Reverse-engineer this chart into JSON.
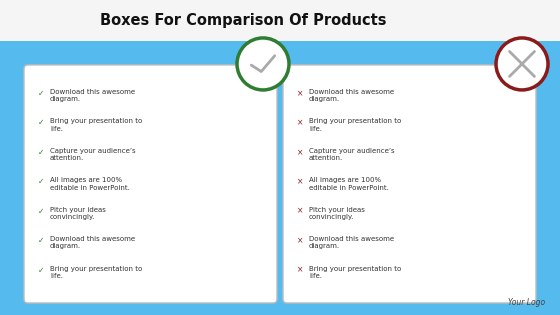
{
  "title": "Boxes For Comparison Of Products",
  "background_color": "#55bbee",
  "white_bg": "#f5f5f5",
  "box_fill": "#ffffff",
  "box_edge": "#cccccc",
  "title_fontsize": 10.5,
  "title_color": "#111111",
  "left_icon_color": "#2e7d32",
  "right_icon_color": "#8b1a1a",
  "bullet_color_left": "#2e7d32",
  "bullet_color_right": "#8b1a1a",
  "text_color": "#333333",
  "footer_text": "Your Logo",
  "items": [
    "Download this awesome\ndiagram.",
    "Bring your presentation to\nlife.",
    "Capture your audience’s\nattention.",
    "All images are 100%\neditable in PowerPoint.",
    "Pitch your ideas\nconvincingly.",
    "Download this awesome\ndiagram.",
    "Bring your presentation to\nlife."
  ],
  "title_bg": "#f0f0f0",
  "check_color": "#aaaaaa",
  "x_color": "#aaaaaa"
}
